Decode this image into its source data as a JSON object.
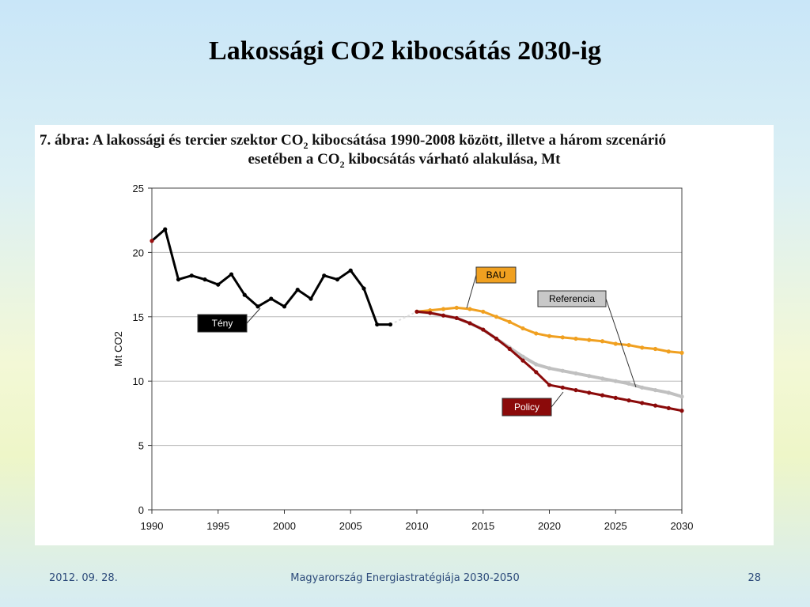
{
  "slide": {
    "title": "Lakossági CO2 kibocsátás 2030-ig"
  },
  "caption": {
    "line1_a": "7. ábra: A lakossági és tercier szektor CO",
    "line1_sub": "2",
    "line1_b": " kibocsátása 1990-2008 között, illetve a három szcenárió",
    "line2_a": "esetében a CO",
    "line2_sub": "2",
    "line2_b": " kibocsátás várható alakulása, Mt"
  },
  "footer": {
    "date": "2012. 09. 28.",
    "center": "Magyarország Energiastratégiája 2030-2050",
    "page": "28"
  },
  "colors": {
    "teny": "#000000",
    "bau": "#f0a020",
    "referencia": "#c0c0c0",
    "policy": "#8b0a0a",
    "teny_start": "#9b1010",
    "grid": "#b8b8b8"
  },
  "chart_data": {
    "type": "line",
    "title": "",
    "xlabel": "",
    "ylabel": "Mt CO2",
    "xlim": [
      1990,
      2030
    ],
    "ylim": [
      0,
      25
    ],
    "x_ticks": [
      1990,
      1995,
      2000,
      2005,
      2010,
      2015,
      2020,
      2025,
      2030
    ],
    "y_ticks": [
      0,
      5,
      10,
      15,
      20,
      25
    ],
    "grid": "horizontal",
    "series": [
      {
        "name": "Tény",
        "color": "#000000",
        "x": [
          1990,
          1991,
          1992,
          1993,
          1994,
          1995,
          1996,
          1997,
          1998,
          1999,
          2000,
          2001,
          2002,
          2003,
          2004,
          2005,
          2006,
          2007,
          2008
        ],
        "y": [
          20.9,
          21.8,
          17.9,
          18.2,
          17.9,
          17.5,
          18.3,
          16.7,
          15.8,
          16.4,
          15.8,
          17.1,
          16.4,
          18.2,
          17.9,
          18.6,
          17.2,
          14.4,
          14.4
        ]
      },
      {
        "name": "BAU",
        "color": "#f0a020",
        "x": [
          2010,
          2011,
          2012,
          2013,
          2014,
          2015,
          2016,
          2017,
          2018,
          2019,
          2020,
          2021,
          2022,
          2023,
          2024,
          2025,
          2026,
          2027,
          2028,
          2029,
          2030
        ],
        "y": [
          15.4,
          15.5,
          15.6,
          15.7,
          15.6,
          15.4,
          15.0,
          14.6,
          14.1,
          13.7,
          13.5,
          13.4,
          13.3,
          13.2,
          13.1,
          12.9,
          12.8,
          12.6,
          12.5,
          12.3,
          12.2
        ]
      },
      {
        "name": "Referencia",
        "color": "#c0c0c0",
        "x": [
          2010,
          2011,
          2012,
          2013,
          2014,
          2015,
          2016,
          2017,
          2018,
          2019,
          2020,
          2021,
          2022,
          2023,
          2024,
          2025,
          2026,
          2027,
          2028,
          2029,
          2030
        ],
        "y": [
          15.4,
          15.3,
          15.1,
          14.9,
          14.5,
          14.0,
          13.3,
          12.6,
          11.9,
          11.3,
          11.0,
          10.8,
          10.6,
          10.4,
          10.2,
          10.0,
          9.8,
          9.5,
          9.3,
          9.1,
          8.8
        ]
      },
      {
        "name": "Policy",
        "color": "#8b0a0a",
        "x": [
          2010,
          2011,
          2012,
          2013,
          2014,
          2015,
          2016,
          2017,
          2018,
          2019,
          2020,
          2021,
          2022,
          2023,
          2024,
          2025,
          2026,
          2027,
          2028,
          2029,
          2030
        ],
        "y": [
          15.4,
          15.3,
          15.1,
          14.9,
          14.5,
          14.0,
          13.3,
          12.5,
          11.6,
          10.7,
          9.7,
          9.5,
          9.3,
          9.1,
          8.9,
          8.7,
          8.5,
          8.3,
          8.1,
          7.9,
          7.7
        ]
      }
    ],
    "labels": [
      {
        "series": "Tény",
        "text": "Tény"
      },
      {
        "series": "BAU",
        "text": "BAU"
      },
      {
        "series": "Referencia",
        "text": "Referencia"
      },
      {
        "series": "Policy",
        "text": "Policy"
      }
    ]
  }
}
